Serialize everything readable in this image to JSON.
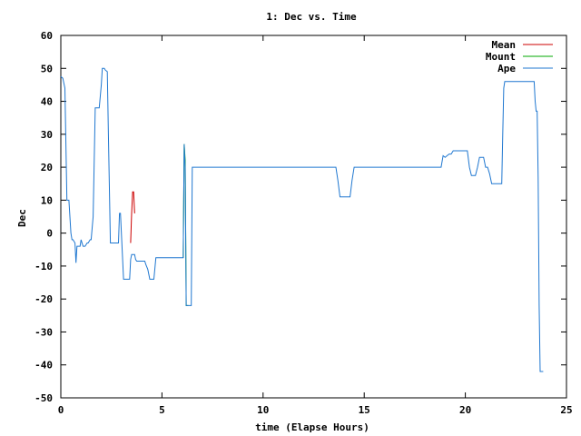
{
  "chart_data": {
    "type": "line",
    "title": "1: Dec vs. Time",
    "xlabel": "time (Elapse Hours)",
    "ylabel": "Dec",
    "xlim": [
      0,
      25
    ],
    "ylim": [
      -50,
      60
    ],
    "xticks": [
      0,
      5,
      10,
      15,
      20,
      25
    ],
    "yticks": [
      -50,
      -40,
      -30,
      -20,
      -10,
      0,
      10,
      20,
      30,
      40,
      50,
      60
    ],
    "grid": false,
    "legend_position": "top-right",
    "series": [
      {
        "name": "Mean",
        "color": "#cc0000",
        "x": [
          3.45,
          3.5,
          3.55,
          3.6,
          3.65
        ],
        "y": [
          -3,
          6,
          12.5,
          12.5,
          6
        ]
      },
      {
        "name": "Mount",
        "color": "#00aa00",
        "x": [
          6.05,
          6.1,
          6.15,
          6.2,
          6.25,
          6.3
        ],
        "y": [
          -7.5,
          27,
          22,
          -22,
          -22,
          -22
        ]
      },
      {
        "name": "Ape",
        "color": "#1f77d0",
        "x": [
          0,
          0.1,
          0.2,
          0.3,
          0.35,
          0.4,
          0.5,
          0.55,
          0.6,
          0.7,
          0.75,
          0.8,
          0.9,
          0.95,
          1.0,
          1.1,
          1.2,
          1.3,
          1.35,
          1.45,
          1.5,
          1.6,
          1.7,
          1.8,
          1.9,
          2.0,
          2.05,
          2.15,
          2.2,
          2.3,
          2.35,
          2.45,
          2.5,
          2.55,
          2.6,
          2.7,
          2.75,
          2.8,
          2.85,
          2.9,
          2.95,
          3.1,
          3.2,
          3.3,
          3.4,
          3.45,
          3.5,
          3.55,
          3.6,
          3.65,
          3.7,
          3.75,
          3.8,
          3.9,
          4.0,
          4.1,
          4.15,
          4.2,
          4.3,
          4.4,
          4.5,
          4.6,
          4.7,
          4.8,
          4.9,
          5.0,
          5.1,
          5.2,
          5.3,
          5.4,
          5.45,
          5.5,
          5.55,
          5.6,
          5.7,
          5.8,
          5.9,
          6.0,
          6.05,
          6.1,
          6.15,
          6.2,
          6.25,
          6.3,
          6.35,
          6.4,
          6.45,
          6.5,
          6.6,
          7.0,
          8.0,
          9.0,
          10.0,
          11.0,
          12.0,
          13.0,
          13.6,
          13.7,
          13.8,
          13.9,
          14.0,
          14.3,
          14.4,
          14.5,
          14.6,
          15.0,
          16.0,
          17.0,
          18.0,
          18.6,
          18.7,
          18.8,
          18.9,
          19.0,
          19.1,
          19.2,
          19.3,
          19.4,
          19.5,
          20.0,
          20.1,
          20.2,
          20.3,
          20.4,
          20.5,
          20.6,
          20.7,
          20.8,
          20.9,
          21.0,
          21.1,
          21.2,
          21.3,
          21.4,
          21.5,
          21.6,
          21.7,
          21.8,
          21.85,
          21.9,
          21.95,
          22.0,
          22.1,
          22.2,
          22.3,
          22.5,
          23.0,
          23.3,
          23.35,
          23.4,
          23.45,
          23.5,
          23.55,
          23.6,
          23.65,
          23.7,
          23.75,
          23.85
        ],
        "y": [
          47.5,
          47,
          44,
          10,
          10,
          10,
          0,
          -2,
          -2,
          -3,
          -9,
          -4,
          -4,
          -4,
          -2,
          -4,
          -4,
          -3,
          -3,
          -2,
          -2,
          5,
          38,
          38,
          38,
          45,
          50,
          50,
          49.5,
          49,
          30,
          -3,
          -3,
          -3,
          -3,
          -3,
          -3,
          -3,
          -3,
          6,
          6,
          -14,
          -14,
          -14,
          -14,
          -8,
          -6.5,
          -6.5,
          -6.5,
          -6.5,
          -8,
          -8.5,
          -8.5,
          -8.5,
          -8.5,
          -8.5,
          -8.5,
          -9.5,
          -11,
          -14,
          -14,
          -14,
          -7.5,
          -7.5,
          -7.5,
          -7.5,
          -7.5,
          -7.5,
          -7.5,
          -7.5,
          -7.5,
          -7.5,
          -7.5,
          -7.5,
          -7.5,
          -7.5,
          -7.5,
          -7.5,
          -7.5,
          27,
          20,
          -22,
          -22,
          -22,
          -22,
          -22,
          -22,
          20,
          20,
          20,
          20,
          20,
          20,
          20,
          20,
          20,
          20,
          16,
          11,
          11,
          11,
          11,
          16,
          20,
          20,
          20,
          20,
          20,
          20,
          20,
          20,
          20,
          23.5,
          23,
          23.5,
          24,
          24,
          25,
          25,
          25,
          25,
          20,
          17.5,
          17.5,
          17.5,
          20,
          23,
          23,
          23,
          20,
          20,
          18,
          15,
          15,
          15,
          15,
          15,
          15,
          30,
          44,
          46,
          46,
          46,
          46,
          46,
          46,
          46,
          46,
          46,
          46,
          40,
          37,
          37,
          17,
          -22,
          -42,
          -42,
          -42
        ]
      }
    ]
  }
}
